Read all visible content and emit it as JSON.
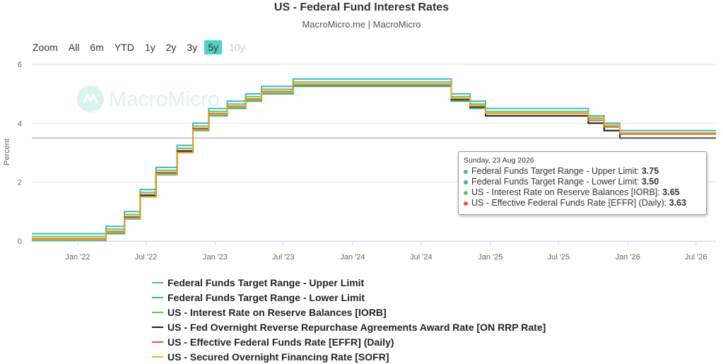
{
  "title": "US - Federal Fund Interest Rates",
  "subtitle": "MacroMicro.me | MacroMicro",
  "watermark": "MacroMicro",
  "zoom": {
    "label": "Zoom",
    "options": [
      "All",
      "6m",
      "YTD",
      "1y",
      "2y",
      "3y",
      "5y",
      "10y"
    ],
    "selected": "5y",
    "disabled": [
      "10y"
    ]
  },
  "tooltip": {
    "date": "Sunday, 23 Aug 2026",
    "rows": [
      {
        "label": "Federal Funds Target Range - Upper Limit: ",
        "value": "3.75",
        "color": "#44b3c6"
      },
      {
        "label": "Federal Funds Target Range - Lower Limit: ",
        "value": "3.50",
        "color": "#2ebd8f"
      },
      {
        "label": "US - Interest Rate on Reserve Balances [IORB]: ",
        "value": "3.65",
        "color": "#5fc85b"
      },
      {
        "label": "US - Effective Federal Funds Rate [EFFR] (Daily): ",
        "value": "3.63",
        "color": "#e8533c"
      }
    ]
  },
  "chart_data": {
    "type": "line",
    "title": "US - Federal Fund Interest Rates",
    "subtitle": "MacroMicro.me | MacroMicro",
    "ylabel": "Percent",
    "ylim": [
      0,
      6
    ],
    "yticks": [
      0,
      2,
      4,
      6
    ],
    "xlim": [
      "2021-09-01",
      "2026-08-23"
    ],
    "xticks": [
      {
        "date": "2022-01-01",
        "label": "Jan '22"
      },
      {
        "date": "2022-07-01",
        "label": "Jul '22"
      },
      {
        "date": "2023-01-01",
        "label": "Jan '23"
      },
      {
        "date": "2023-07-01",
        "label": "Jul '23"
      },
      {
        "date": "2024-01-01",
        "label": "Jan '24"
      },
      {
        "date": "2024-07-01",
        "label": "Jul '24"
      },
      {
        "date": "2025-01-01",
        "label": "Jan '25"
      },
      {
        "date": "2025-07-01",
        "label": "Jul '25"
      },
      {
        "date": "2026-01-01",
        "label": "Jan '26"
      },
      {
        "date": "2026-07-01",
        "label": "Jul '26"
      }
    ],
    "grid": true,
    "legend_position": "bottom",
    "crosshair_value": 3.5,
    "series": [
      {
        "name": "Federal Funds Target Range - Upper Limit",
        "color": "#44b3c6",
        "x": [
          "2021-09-01",
          "2022-03-17",
          "2022-05-05",
          "2022-06-16",
          "2022-07-28",
          "2022-09-22",
          "2022-11-03",
          "2022-12-15",
          "2023-02-02",
          "2023-03-23",
          "2023-05-04",
          "2023-07-27",
          "2024-09-19",
          "2024-11-08",
          "2024-12-19",
          "2025-09-18",
          "2025-10-30",
          "2025-12-11",
          "2026-08-23"
        ],
        "values": [
          0.25,
          0.5,
          1.0,
          1.75,
          2.5,
          3.25,
          4.0,
          4.5,
          4.75,
          5.0,
          5.25,
          5.5,
          5.0,
          4.75,
          4.5,
          4.25,
          4.0,
          3.75,
          3.75
        ]
      },
      {
        "name": "Federal Funds Target Range - Lower Limit",
        "color": "#2ebd8f",
        "x": [
          "2021-09-01",
          "2022-03-17",
          "2022-05-05",
          "2022-06-16",
          "2022-07-28",
          "2022-09-22",
          "2022-11-03",
          "2022-12-15",
          "2023-02-02",
          "2023-03-23",
          "2023-05-04",
          "2023-07-27",
          "2024-09-19",
          "2024-11-08",
          "2024-12-19",
          "2025-09-18",
          "2025-10-30",
          "2025-12-11",
          "2026-08-23"
        ],
        "values": [
          0.0,
          0.25,
          0.75,
          1.5,
          2.25,
          3.0,
          3.75,
          4.25,
          4.5,
          4.75,
          5.0,
          5.25,
          4.75,
          4.5,
          4.25,
          4.0,
          3.75,
          3.5,
          3.5
        ]
      },
      {
        "name": "US - Interest Rate on Reserve Balances [IORB]",
        "color": "#5fc85b",
        "x": [
          "2021-09-01",
          "2022-03-17",
          "2022-05-05",
          "2022-06-16",
          "2022-07-28",
          "2022-09-22",
          "2022-11-03",
          "2022-12-15",
          "2023-02-02",
          "2023-03-23",
          "2023-05-04",
          "2023-07-27",
          "2024-09-19",
          "2024-11-08",
          "2024-12-19",
          "2025-09-18",
          "2025-10-30",
          "2025-12-11",
          "2026-08-23"
        ],
        "values": [
          0.15,
          0.4,
          0.9,
          1.65,
          2.4,
          3.15,
          3.9,
          4.4,
          4.65,
          4.9,
          5.15,
          5.4,
          4.9,
          4.65,
          4.4,
          4.15,
          3.9,
          3.65,
          3.65
        ]
      },
      {
        "name": "US - Fed Overnight Reverse Repurchase Agreements Award Rate [ON RRP Rate]",
        "color": "#222222",
        "x": [
          "2021-09-01",
          "2022-03-17",
          "2022-05-05",
          "2022-06-16",
          "2022-07-28",
          "2022-09-22",
          "2022-11-03",
          "2022-12-15",
          "2023-02-02",
          "2023-03-23",
          "2023-05-04",
          "2023-07-27",
          "2024-09-19",
          "2024-11-08",
          "2024-12-19",
          "2025-09-18",
          "2025-10-30",
          "2025-12-11",
          "2026-08-23"
        ],
        "values": [
          0.05,
          0.3,
          0.8,
          1.55,
          2.3,
          3.05,
          3.8,
          4.3,
          4.55,
          4.8,
          5.05,
          5.3,
          4.8,
          4.55,
          4.25,
          4.0,
          3.75,
          3.5,
          3.5
        ]
      },
      {
        "name": "US - Effective Federal Funds Rate [EFFR] (Daily)",
        "color": "#e8533c",
        "x": [
          "2021-09-01",
          "2022-03-17",
          "2022-05-05",
          "2022-06-16",
          "2022-07-28",
          "2022-09-22",
          "2022-11-03",
          "2022-12-15",
          "2023-02-02",
          "2023-03-23",
          "2023-05-04",
          "2023-07-27",
          "2024-09-19",
          "2024-11-08",
          "2024-12-19",
          "2025-09-18",
          "2025-10-30",
          "2025-12-11",
          "2026-08-23"
        ],
        "values": [
          0.08,
          0.33,
          0.83,
          1.58,
          2.33,
          3.08,
          3.83,
          4.33,
          4.58,
          4.83,
          5.08,
          5.33,
          4.83,
          4.58,
          4.33,
          4.09,
          3.87,
          3.63,
          3.63
        ]
      },
      {
        "name": "US - Secured Overnight Financing Rate [SOFR]",
        "color": "#f2b21b",
        "x": [
          "2021-09-01",
          "2022-03-17",
          "2022-05-05",
          "2022-06-16",
          "2022-07-28",
          "2022-09-22",
          "2022-11-03",
          "2022-12-15",
          "2023-02-02",
          "2023-03-23",
          "2023-05-04",
          "2023-07-27",
          "2024-09-19",
          "2024-11-08",
          "2024-12-19",
          "2025-09-18",
          "2025-10-30",
          "2025-12-11",
          "2026-08-23"
        ],
        "values": [
          0.05,
          0.3,
          0.78,
          1.5,
          2.28,
          3.0,
          3.78,
          4.3,
          4.55,
          4.8,
          5.05,
          5.31,
          4.85,
          4.6,
          4.35,
          4.2,
          3.95,
          3.68,
          3.63
        ]
      }
    ]
  }
}
